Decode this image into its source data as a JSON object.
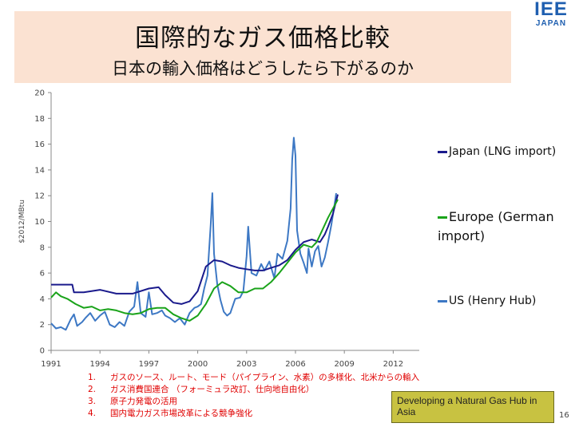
{
  "header": {
    "title": "国際的なガス価格比較",
    "subtitle": "日本の輸入価格はどうしたら下がるのか"
  },
  "logo": {
    "mark": "IEE",
    "sub": "JAPAN"
  },
  "chart_data": {
    "type": "line",
    "ylabel": "$2012/MBtu",
    "ylim": [
      0,
      20
    ],
    "yticks": [
      0,
      2,
      4,
      6,
      8,
      10,
      12,
      14,
      16,
      18,
      20
    ],
    "xlim": [
      1991,
      2013.6
    ],
    "xticks": [
      1991,
      1994,
      1997,
      2000,
      2003,
      2006,
      2009,
      2012
    ],
    "grid": false,
    "legend_position": "right",
    "series": [
      {
        "name": "Japan (LNG import)",
        "color": "#1a1a8c",
        "points": [
          [
            1991.0,
            5.1
          ],
          [
            1992.3,
            5.1
          ],
          [
            1992.4,
            4.5
          ],
          [
            1993.0,
            4.5
          ],
          [
            1994.0,
            4.7
          ],
          [
            1995.0,
            4.4
          ],
          [
            1996.0,
            4.4
          ],
          [
            1997.0,
            4.8
          ],
          [
            1997.6,
            4.9
          ],
          [
            1998.0,
            4.3
          ],
          [
            1998.5,
            3.7
          ],
          [
            1999.0,
            3.6
          ],
          [
            1999.5,
            3.8
          ],
          [
            2000.0,
            4.6
          ],
          [
            2000.5,
            6.5
          ],
          [
            2001.0,
            7.0
          ],
          [
            2001.5,
            6.9
          ],
          [
            2002.0,
            6.6
          ],
          [
            2002.5,
            6.4
          ],
          [
            2003.0,
            6.3
          ],
          [
            2003.5,
            6.2
          ],
          [
            2004.0,
            6.2
          ],
          [
            2004.5,
            6.4
          ],
          [
            2005.0,
            6.6
          ],
          [
            2005.5,
            7.0
          ],
          [
            2006.0,
            7.8
          ],
          [
            2006.5,
            8.4
          ],
          [
            2007.0,
            8.6
          ],
          [
            2007.5,
            8.4
          ],
          [
            2007.8,
            9.0
          ],
          [
            2008.0,
            9.6
          ],
          [
            2008.3,
            10.6
          ],
          [
            2008.6,
            12.1
          ]
        ]
      },
      {
        "name": "Europe (German import)",
        "color": "#1aa31a",
        "points": [
          [
            1991.0,
            4.1
          ],
          [
            1991.3,
            4.5
          ],
          [
            1991.6,
            4.2
          ],
          [
            1992.0,
            4.0
          ],
          [
            1992.5,
            3.6
          ],
          [
            1993.0,
            3.3
          ],
          [
            1993.5,
            3.4
          ],
          [
            1994.0,
            3.1
          ],
          [
            1994.5,
            3.2
          ],
          [
            1995.0,
            3.1
          ],
          [
            1995.5,
            2.9
          ],
          [
            1996.0,
            2.8
          ],
          [
            1996.5,
            2.9
          ],
          [
            1997.0,
            3.2
          ],
          [
            1997.5,
            3.3
          ],
          [
            1998.0,
            3.3
          ],
          [
            1998.5,
            2.8
          ],
          [
            1999.0,
            2.5
          ],
          [
            1999.5,
            2.3
          ],
          [
            2000.0,
            2.7
          ],
          [
            2000.5,
            3.6
          ],
          [
            2001.0,
            4.8
          ],
          [
            2001.5,
            5.3
          ],
          [
            2002.0,
            5.0
          ],
          [
            2002.5,
            4.5
          ],
          [
            2003.0,
            4.5
          ],
          [
            2003.5,
            4.8
          ],
          [
            2004.0,
            4.8
          ],
          [
            2004.5,
            5.3
          ],
          [
            2005.0,
            6.0
          ],
          [
            2005.5,
            6.8
          ],
          [
            2006.0,
            7.6
          ],
          [
            2006.5,
            8.2
          ],
          [
            2007.0,
            8.0
          ],
          [
            2007.3,
            8.4
          ],
          [
            2007.6,
            9.2
          ],
          [
            2008.0,
            10.3
          ],
          [
            2008.3,
            11.0
          ],
          [
            2008.6,
            11.7
          ]
        ]
      },
      {
        "name": "US (Henry Hub)",
        "color": "#3d78c4",
        "points": [
          [
            1991.0,
            2.1
          ],
          [
            1991.3,
            1.7
          ],
          [
            1991.6,
            1.8
          ],
          [
            1991.9,
            1.6
          ],
          [
            1992.2,
            2.4
          ],
          [
            1992.4,
            2.8
          ],
          [
            1992.6,
            1.9
          ],
          [
            1992.9,
            2.2
          ],
          [
            1993.1,
            2.5
          ],
          [
            1993.4,
            2.9
          ],
          [
            1993.7,
            2.3
          ],
          [
            1994.0,
            2.7
          ],
          [
            1994.3,
            3.0
          ],
          [
            1994.6,
            2.0
          ],
          [
            1994.9,
            1.8
          ],
          [
            1995.2,
            2.2
          ],
          [
            1995.5,
            1.9
          ],
          [
            1995.8,
            3.0
          ],
          [
            1996.1,
            3.4
          ],
          [
            1996.3,
            5.3
          ],
          [
            1996.5,
            2.9
          ],
          [
            1996.8,
            2.6
          ],
          [
            1997.0,
            4.5
          ],
          [
            1997.2,
            2.8
          ],
          [
            1997.5,
            2.9
          ],
          [
            1997.8,
            3.1
          ],
          [
            1998.0,
            2.7
          ],
          [
            1998.3,
            2.5
          ],
          [
            1998.6,
            2.2
          ],
          [
            1998.9,
            2.5
          ],
          [
            1999.2,
            2.0
          ],
          [
            1999.5,
            2.9
          ],
          [
            1999.8,
            3.3
          ],
          [
            2000.0,
            3.4
          ],
          [
            2000.2,
            3.6
          ],
          [
            2000.4,
            4.8
          ],
          [
            2000.6,
            5.8
          ],
          [
            2000.8,
            9.8
          ],
          [
            2000.9,
            12.2
          ],
          [
            2001.0,
            7.5
          ],
          [
            2001.2,
            5.1
          ],
          [
            2001.4,
            3.9
          ],
          [
            2001.6,
            3.0
          ],
          [
            2001.8,
            2.7
          ],
          [
            2002.0,
            2.9
          ],
          [
            2002.3,
            4.0
          ],
          [
            2002.6,
            4.1
          ],
          [
            2002.8,
            4.6
          ],
          [
            2003.0,
            7.3
          ],
          [
            2003.1,
            9.6
          ],
          [
            2003.3,
            6.0
          ],
          [
            2003.6,
            5.8
          ],
          [
            2003.9,
            6.7
          ],
          [
            2004.1,
            6.2
          ],
          [
            2004.4,
            6.9
          ],
          [
            2004.7,
            5.6
          ],
          [
            2004.9,
            7.5
          ],
          [
            2005.2,
            7.1
          ],
          [
            2005.5,
            8.5
          ],
          [
            2005.7,
            11.0
          ],
          [
            2005.8,
            14.8
          ],
          [
            2005.9,
            16.5
          ],
          [
            2006.0,
            15.1
          ],
          [
            2006.1,
            9.3
          ],
          [
            2006.3,
            7.5
          ],
          [
            2006.5,
            6.8
          ],
          [
            2006.7,
            6.0
          ],
          [
            2006.8,
            7.9
          ],
          [
            2007.0,
            6.5
          ],
          [
            2007.2,
            7.7
          ],
          [
            2007.4,
            8.1
          ],
          [
            2007.6,
            6.5
          ],
          [
            2007.8,
            7.2
          ],
          [
            2008.0,
            8.4
          ],
          [
            2008.2,
            9.7
          ],
          [
            2008.4,
            11.3
          ],
          [
            2008.5,
            12.2
          ]
        ]
      }
    ]
  },
  "notes": [
    {
      "num": "1.",
      "text": "ガスのソース、ルート、モード（パイプライン、水素）の多様化、北米からの輸入"
    },
    {
      "num": "2.",
      "text": "ガス消費国連合 （フォーミュラ改訂、仕向地自由化）"
    },
    {
      "num": "3.",
      "text": "原子力発電の活用"
    },
    {
      "num": "4.",
      "text": "国内電力ガス市場改革による競争強化"
    }
  ],
  "note_box": {
    "text": "Developing a Natural Gas Hub in Asia"
  },
  "page_number": "16"
}
